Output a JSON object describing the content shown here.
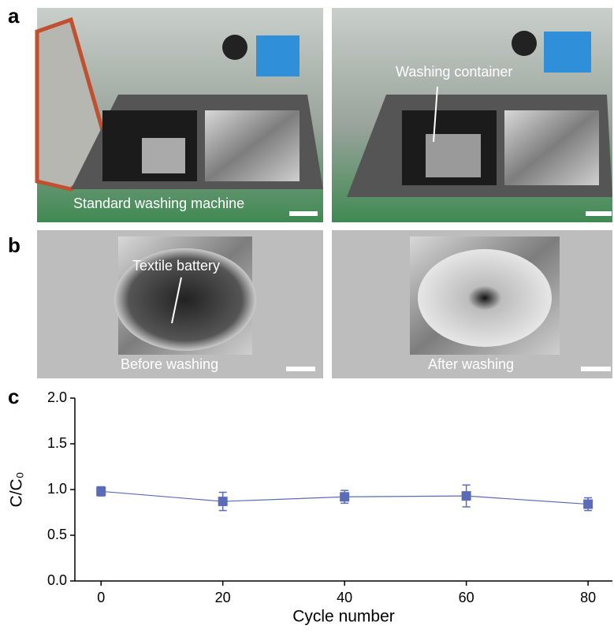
{
  "panels": {
    "a": {
      "label": "a",
      "left_caption": "Standard washing machine",
      "right_caption": "Washing container"
    },
    "b": {
      "label": "b",
      "left_annotation": "Textile battery",
      "left_caption": "Before washing",
      "right_caption": "After washing"
    },
    "c": {
      "label": "c"
    }
  },
  "chart_data": {
    "type": "line",
    "x_label": "Cycle number",
    "y_label": "C/C₀",
    "x": [
      0,
      20,
      40,
      60,
      80
    ],
    "series": [
      {
        "color": "#5a6cb8",
        "values": [
          0.98,
          0.87,
          0.92,
          0.93,
          0.84
        ],
        "errors": [
          0.05,
          0.1,
          0.07,
          0.12,
          0.07
        ]
      }
    ],
    "xlim": [
      -4.3,
      84
    ],
    "xticks": [
      0,
      20,
      40,
      60,
      80
    ],
    "ylim": [
      0,
      2
    ],
    "yticks": [
      {
        "value": 0,
        "label": "0.0"
      },
      0.5,
      {
        "value": 1,
        "label": "1.0"
      },
      1.5,
      {
        "value": 2,
        "label": "2.0"
      }
    ]
  }
}
